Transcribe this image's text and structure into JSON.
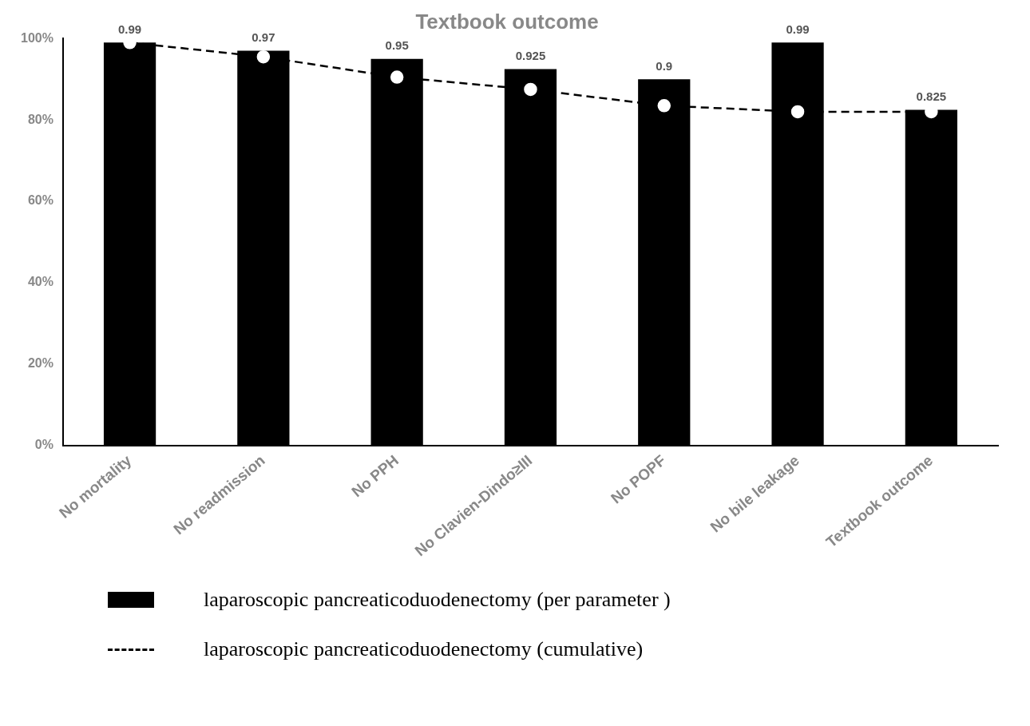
{
  "chart_data": {
    "type": "bar",
    "title": "Textbook outcome",
    "categories": [
      "No mortality",
      "No readmission",
      "No PPH",
      "No Clavien-Dindo≥III",
      "No POPF",
      "No bile leakage",
      "Textbook outcome"
    ],
    "series": [
      {
        "name": "laparoscopic pancreaticoduodenectomy (per parameter )",
        "color": "#000000",
        "values": [
          0.99,
          0.97,
          0.95,
          0.925,
          0.9,
          0.99,
          0.825
        ],
        "value_labels": [
          "0.99",
          "0.97",
          "0.95",
          "0.925",
          "0.9",
          "0.99",
          "0.825"
        ]
      },
      {
        "name": "laparoscopic pancreaticoduodenectomy (cumulative)",
        "type": "line",
        "color": "#000000",
        "line_style": "dashed",
        "marker": "circle",
        "values": [
          0.99,
          0.955,
          0.905,
          0.875,
          0.835,
          0.82,
          0.82
        ]
      }
    ],
    "ylim": [
      0,
      1
    ],
    "yticks": [
      {
        "value": 0,
        "label": "0%"
      },
      {
        "value": 0.2,
        "label": "20%"
      },
      {
        "value": 0.4,
        "label": "40%"
      },
      {
        "value": 0.6,
        "label": "60%"
      },
      {
        "value": 0.8,
        "label": "80%"
      },
      {
        "value": 1,
        "label": "100%"
      }
    ],
    "grid": false,
    "legend": "bottom"
  }
}
